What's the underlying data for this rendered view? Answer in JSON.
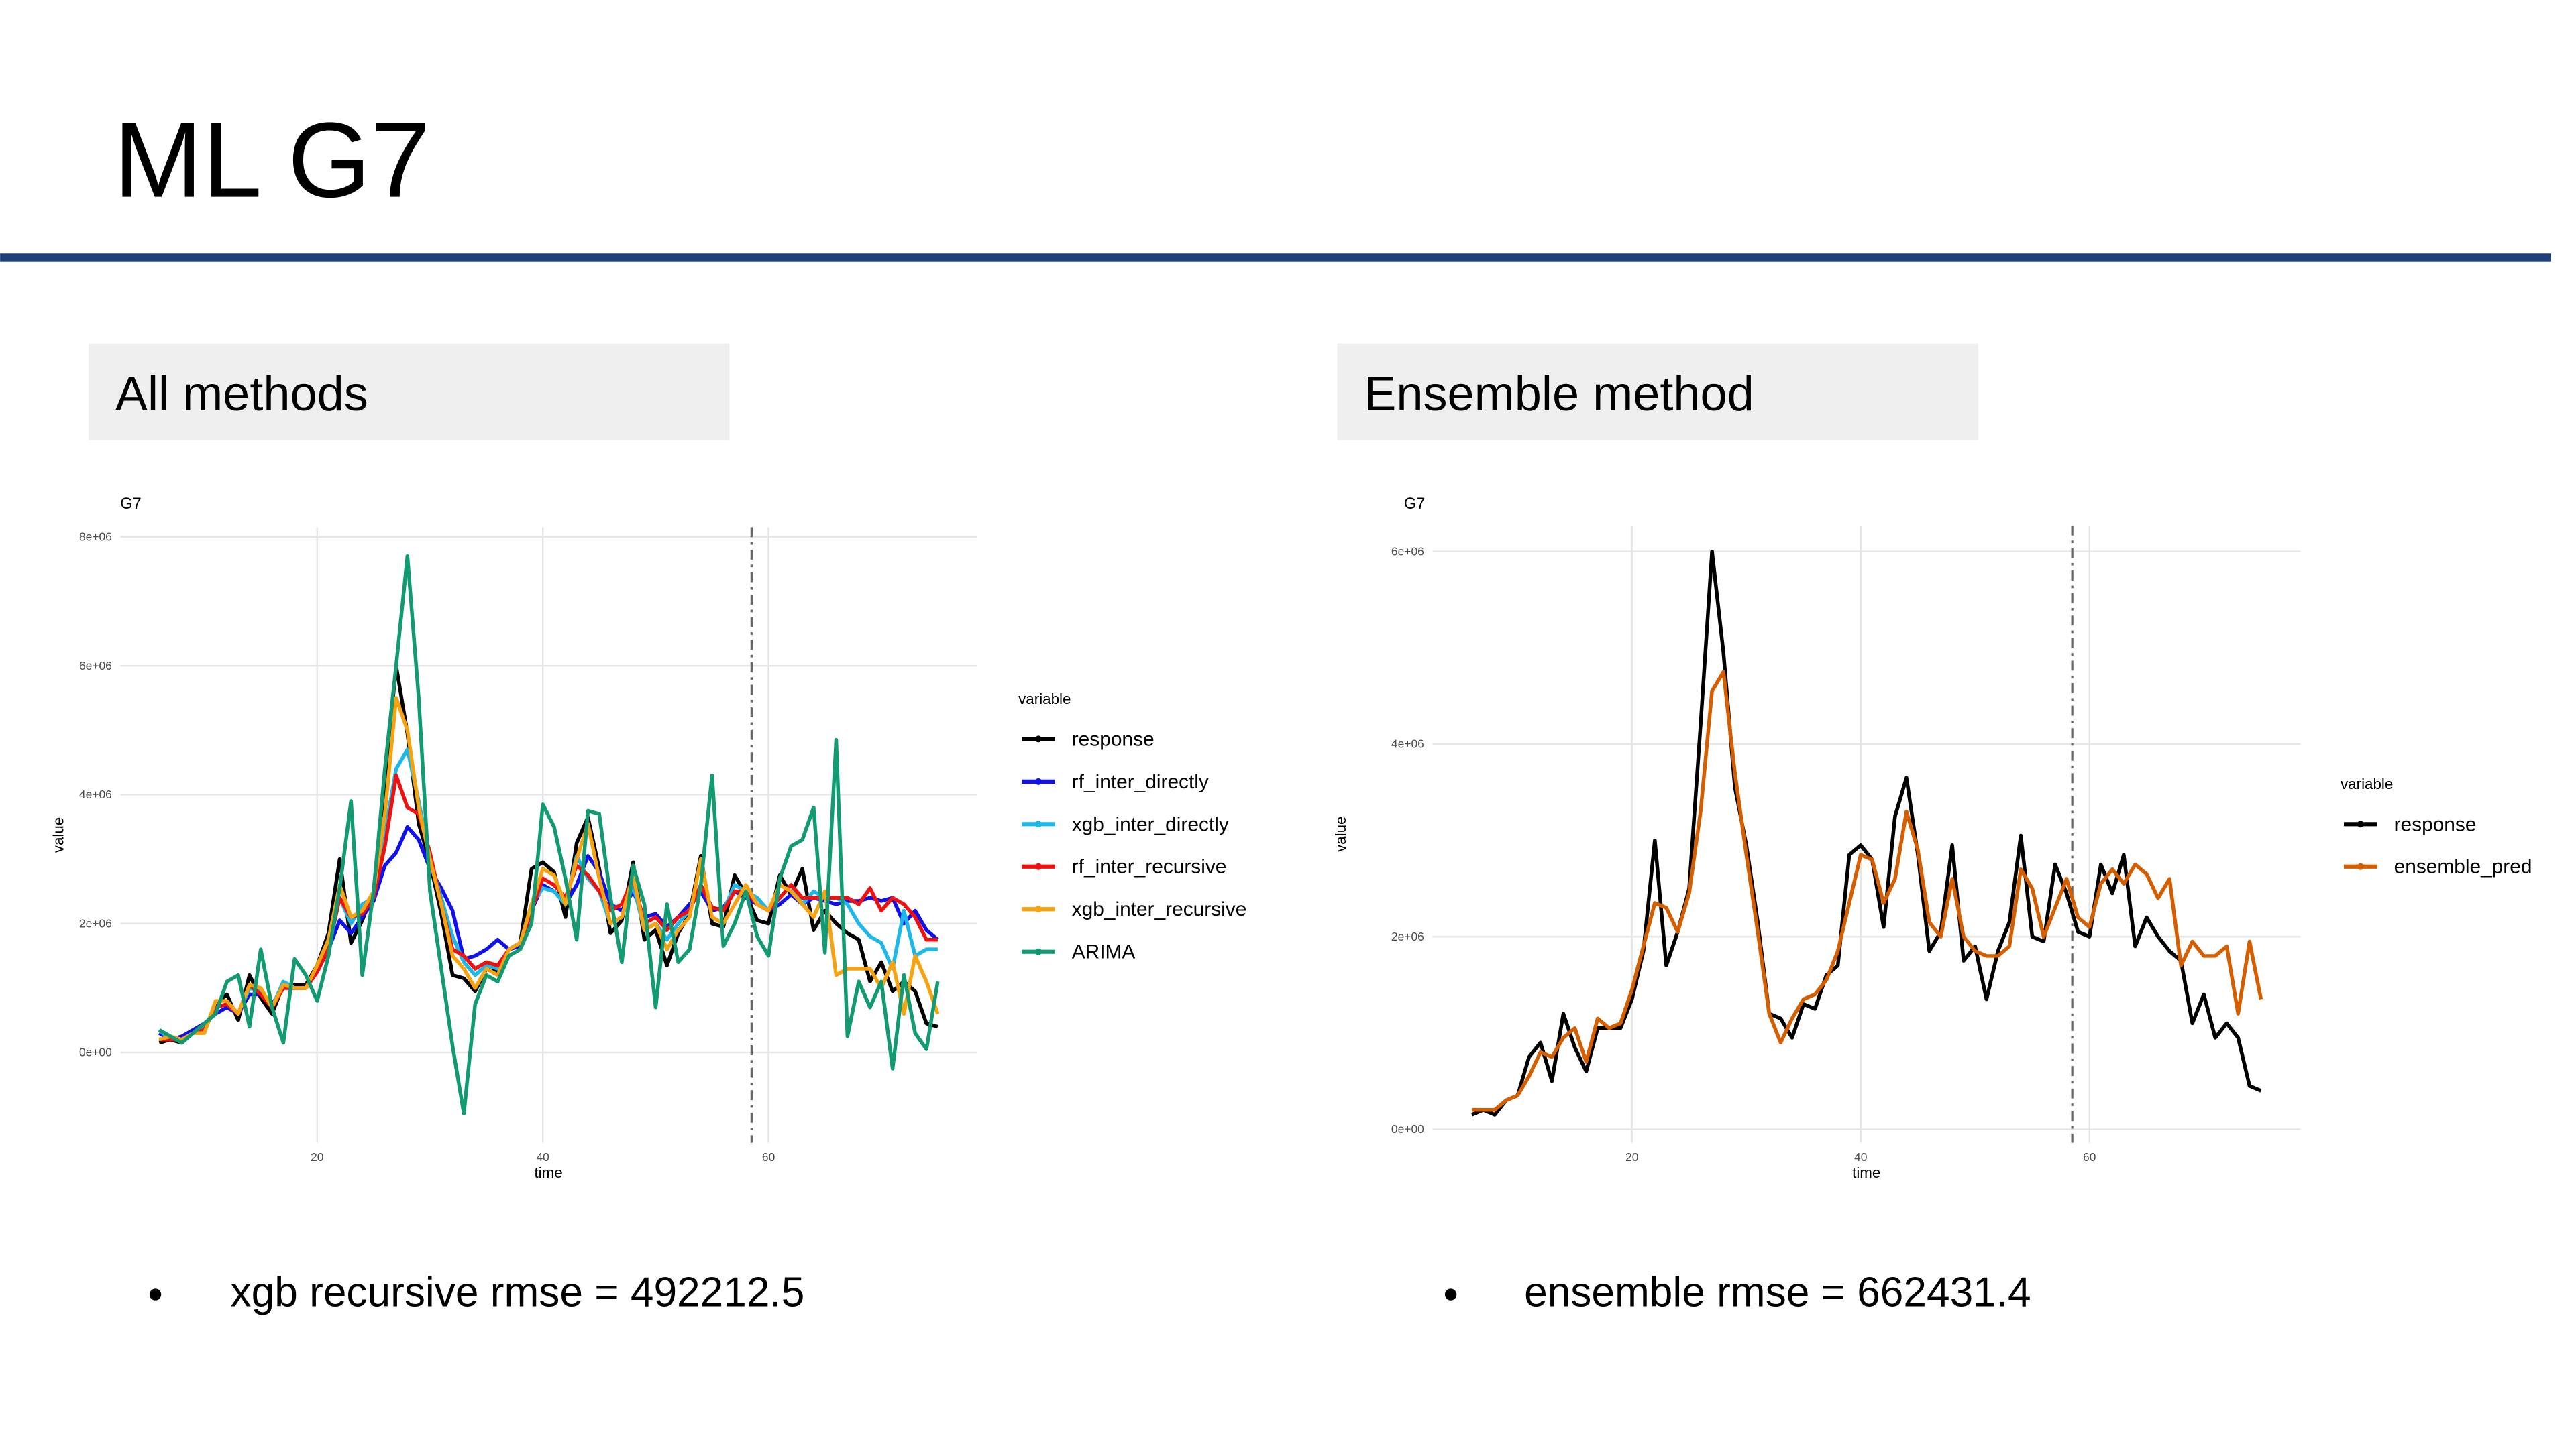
{
  "slide": {
    "title": "ML G7",
    "panels": [
      {
        "heading": "All methods",
        "bullet": "xgb recursive rmse = 492212.5"
      },
      {
        "heading": "Ensemble method",
        "bullet": "ensemble rmse = 662431.4"
      }
    ]
  },
  "chart_data": [
    {
      "type": "line",
      "title": "G7",
      "xlabel": "time",
      "ylabel": "value",
      "legend_title": "variable",
      "grid": true,
      "x": [
        6,
        7,
        8,
        9,
        10,
        11,
        12,
        13,
        14,
        15,
        16,
        17,
        18,
        19,
        20,
        21,
        22,
        23,
        24,
        25,
        26,
        27,
        28,
        29,
        30,
        31,
        32,
        33,
        34,
        35,
        36,
        37,
        38,
        39,
        40,
        41,
        42,
        43,
        44,
        45,
        46,
        47,
        48,
        49,
        50,
        51,
        52,
        53,
        54,
        55,
        56,
        57,
        58,
        59,
        60,
        61,
        62,
        63,
        64,
        65,
        66,
        67,
        68,
        69,
        70,
        71,
        72,
        73,
        74,
        75
      ],
      "xlim": [
        2.55,
        78.45
      ],
      "xticks": [
        20,
        40,
        60
      ],
      "ylim": [
        -1400000.0,
        8150000.0
      ],
      "yticks": [
        {
          "value": 0,
          "label": "0e+00"
        },
        {
          "value": 2000000.0,
          "label": "2e+06"
        },
        {
          "value": 4000000.0,
          "label": "4e+06"
        },
        {
          "value": 6000000.0,
          "label": "6e+06"
        },
        {
          "value": 8000000.0,
          "label": "8e+06"
        }
      ],
      "vline": 58.5,
      "series": [
        {
          "name": "response",
          "color": "#000000",
          "values": [
            150000.0,
            200000.0,
            150000.0,
            300000.0,
            350000.0,
            750000.0,
            900000.0,
            500000.0,
            1200000.0,
            850000.0,
            600000.0,
            1050000.0,
            1050000.0,
            1050000.0,
            1350000.0,
            1850000.0,
            3000000.0,
            1700000.0,
            2050000.0,
            2500000.0,
            4200000.0,
            6000000.0,
            4950000.0,
            3550000.0,
            2950000.0,
            2150000.0,
            1200000.0,
            1150000.0,
            950000.0,
            1300000.0,
            1250000.0,
            1600000.0,
            1700000.0,
            2850000.0,
            2950000.0,
            2800000.0,
            2100000.0,
            3250000.0,
            3650000.0,
            2850000.0,
            1850000.0,
            2050000.0,
            2950000.0,
            1750000.0,
            1900000.0,
            1350000.0,
            1850000.0,
            2150000.0,
            3050000.0,
            2000000.0,
            1950000.0,
            2750000.0,
            2450000.0,
            2050000.0,
            2000000.0,
            2750000.0,
            2450000.0,
            2850000.0,
            1900000.0,
            2200000.0,
            2000000.0,
            1850000.0,
            1750000.0,
            1100000.0,
            1400000.0,
            950000.0,
            1100000.0,
            950000.0,
            450000.0,
            400000.0
          ]
        },
        {
          "name": "rf_inter_directly",
          "color": "#1010ee",
          "values": [
            300000.0,
            200000.0,
            250000.0,
            350000.0,
            450000.0,
            600000.0,
            700000.0,
            600000.0,
            900000.0,
            900000.0,
            750000.0,
            1000000.0,
            1000000.0,
            1000000.0,
            1250000.0,
            1600000.0,
            2050000.0,
            1850000.0,
            2100000.0,
            2350000.0,
            2900000.0,
            3100000.0,
            3500000.0,
            3300000.0,
            2850000.0,
            2550000.0,
            2200000.0,
            1450000.0,
            1500000.0,
            1600000.0,
            1750000.0,
            1600000.0,
            1650000.0,
            2200000.0,
            2600000.0,
            2500000.0,
            2300000.0,
            2600000.0,
            3050000.0,
            2800000.0,
            2300000.0,
            2200000.0,
            2500000.0,
            2100000.0,
            2150000.0,
            1950000.0,
            2100000.0,
            2300000.0,
            2500000.0,
            2200000.0,
            2250000.0,
            2500000.0,
            2400000.0,
            2300000.0,
            2200000.0,
            2300000.0,
            2450000.0,
            2300000.0,
            2400000.0,
            2350000.0,
            2300000.0,
            2350000.0,
            2350000.0,
            2400000.0,
            2350000.0,
            2400000.0,
            2000000.0,
            2200000.0,
            1900000.0,
            1750000.0
          ]
        },
        {
          "name": "xgb_inter_directly",
          "color": "#1cb8ea",
          "values": [
            350000.0,
            200000.0,
            200000.0,
            300000.0,
            400000.0,
            700000.0,
            750000.0,
            600000.0,
            1000000.0,
            950000.0,
            700000.0,
            1100000.0,
            1000000.0,
            1000000.0,
            1300000.0,
            1700000.0,
            2400000.0,
            2000000.0,
            2300000.0,
            2400000.0,
            3400000.0,
            4400000.0,
            4700000.0,
            3900000.0,
            3000000.0,
            2400000.0,
            1800000.0,
            1400000.0,
            1200000.0,
            1350000.0,
            1300000.0,
            1600000.0,
            1700000.0,
            2300000.0,
            2550000.0,
            2500000.0,
            2300000.0,
            3050000.0,
            2700000.0,
            2500000.0,
            2000000.0,
            2100000.0,
            2600000.0,
            1900000.0,
            2000000.0,
            1750000.0,
            2000000.0,
            2200000.0,
            2600000.0,
            2250000.0,
            2200000.0,
            2600000.0,
            2500000.0,
            2400000.0,
            2200000.0,
            2400000.0,
            2600000.0,
            2300000.0,
            2500000.0,
            2400000.0,
            2400000.0,
            2300000.0,
            2000000.0,
            1800000.0,
            1700000.0,
            1300000.0,
            2200000.0,
            1500000.0,
            1600000.0,
            1600000.0
          ]
        },
        {
          "name": "rf_inter_recursive",
          "color": "#f01010",
          "values": [
            200000.0,
            200000.0,
            200000.0,
            300000.0,
            350000.0,
            700000.0,
            750000.0,
            600000.0,
            1050000.0,
            900000.0,
            700000.0,
            1000000.0,
            1000000.0,
            1000000.0,
            1250000.0,
            1600000.0,
            2400000.0,
            2100000.0,
            2150000.0,
            2400000.0,
            3200000.0,
            4300000.0,
            3800000.0,
            3700000.0,
            3100000.0,
            2300000.0,
            1600000.0,
            1500000.0,
            1300000.0,
            1400000.0,
            1350000.0,
            1600000.0,
            1700000.0,
            2200000.0,
            2700000.0,
            2600000.0,
            2400000.0,
            2900000.0,
            2750000.0,
            2500000.0,
            2200000.0,
            2300000.0,
            2700000.0,
            2000000.0,
            2100000.0,
            1900000.0,
            2100000.0,
            2200000.0,
            2600000.0,
            2250000.0,
            2200000.0,
            2500000.0,
            2500000.0,
            2300000.0,
            2200000.0,
            2400000.0,
            2600000.0,
            2400000.0,
            2400000.0,
            2400000.0,
            2400000.0,
            2400000.0,
            2300000.0,
            2550000.0,
            2200000.0,
            2400000.0,
            2300000.0,
            2100000.0,
            1750000.0,
            1750000.0
          ]
        },
        {
          "name": "xgb_inter_recursive",
          "color": "#f7a20f",
          "values": [
            200000.0,
            250000.0,
            200000.0,
            300000.0,
            300000.0,
            800000.0,
            800000.0,
            600000.0,
            1050000.0,
            1000000.0,
            700000.0,
            1050000.0,
            1000000.0,
            1000000.0,
            1350000.0,
            1750000.0,
            2600000.0,
            2100000.0,
            2200000.0,
            2500000.0,
            3700000.0,
            5500000.0,
            5000000.0,
            3800000.0,
            3000000.0,
            2300000.0,
            1500000.0,
            1300000.0,
            1000000.0,
            1300000.0,
            1200000.0,
            1600000.0,
            1700000.0,
            2300000.0,
            2850000.0,
            2750000.0,
            2300000.0,
            3000000.0,
            3550000.0,
            2700000.0,
            2000000.0,
            2100000.0,
            2750000.0,
            1900000.0,
            2000000.0,
            1600000.0,
            1900000.0,
            2100000.0,
            3000000.0,
            2100000.0,
            2000000.0,
            2300000.0,
            2600000.0,
            2300000.0,
            2200000.0,
            2600000.0,
            2500000.0,
            2300000.0,
            2100000.0,
            2500000.0,
            1200000.0,
            1300000.0,
            1300000.0,
            1300000.0,
            1000000.0,
            1400000.0,
            600000.0,
            1500000.0,
            1100000.0,
            600000.0
          ]
        },
        {
          "name": "ARIMA",
          "color": "#129b72",
          "values": [
            350000.0,
            250000.0,
            150000.0,
            300000.0,
            450000.0,
            600000.0,
            1100000.0,
            1200000.0,
            400000.0,
            1600000.0,
            700000.0,
            150000.0,
            1450000.0,
            1200000.0,
            800000.0,
            1500000.0,
            2550000.0,
            3900000.0,
            1200000.0,
            2500000.0,
            4400000.0,
            6000000.0,
            7700000.0,
            5500000.0,
            2500000.0,
            1300000.0,
            100000.0,
            -950000.0,
            750000.0,
            1200000.0,
            1100000.0,
            1500000.0,
            1600000.0,
            2000000.0,
            3850000.0,
            3500000.0,
            2700000.0,
            1750000.0,
            3750000.0,
            3700000.0,
            2400000.0,
            1400000.0,
            2900000.0,
            2300000.0,
            700000.0,
            2300000.0,
            1400000.0,
            1600000.0,
            2600000.0,
            4300000.0,
            1650000.0,
            2000000.0,
            2500000.0,
            1800000.0,
            1500000.0,
            2700000.0,
            3200000.0,
            3300000.0,
            3800000.0,
            1550000.0,
            4850000.0,
            250000.0,
            1100000.0,
            700000.0,
            1100000.0,
            -250000.0,
            1200000.0,
            300000.0,
            50000.0,
            1100000.0
          ]
        }
      ]
    },
    {
      "type": "line",
      "title": "G7",
      "xlabel": "time",
      "ylabel": "value",
      "legend_title": "variable",
      "grid": true,
      "x": [
        6,
        7,
        8,
        9,
        10,
        11,
        12,
        13,
        14,
        15,
        16,
        17,
        18,
        19,
        20,
        21,
        22,
        23,
        24,
        25,
        26,
        27,
        28,
        29,
        30,
        31,
        32,
        33,
        34,
        35,
        36,
        37,
        38,
        39,
        40,
        41,
        42,
        43,
        44,
        45,
        46,
        47,
        48,
        49,
        50,
        51,
        52,
        53,
        54,
        55,
        56,
        57,
        58,
        59,
        60,
        61,
        62,
        63,
        64,
        65,
        66,
        67,
        68,
        69,
        70,
        71,
        72,
        73,
        74,
        75
      ],
      "xlim": [
        2.55,
        78.45
      ],
      "xticks": [
        20,
        40,
        60
      ],
      "ylim": [
        -140000.0,
        6270000.0
      ],
      "yticks": [
        {
          "value": 0,
          "label": "0e+00"
        },
        {
          "value": 2000000.0,
          "label": "2e+06"
        },
        {
          "value": 4000000.0,
          "label": "4e+06"
        },
        {
          "value": 6000000.0,
          "label": "6e+06"
        }
      ],
      "vline": 58.5,
      "series": [
        {
          "name": "response",
          "color": "#000000",
          "values": [
            150000.0,
            200000.0,
            150000.0,
            300000.0,
            350000.0,
            750000.0,
            900000.0,
            500000.0,
            1200000.0,
            850000.0,
            600000.0,
            1050000.0,
            1050000.0,
            1050000.0,
            1350000.0,
            1850000.0,
            3000000.0,
            1700000.0,
            2050000.0,
            2500000.0,
            4200000.0,
            6000000.0,
            4950000.0,
            3550000.0,
            2950000.0,
            2150000.0,
            1200000.0,
            1150000.0,
            950000.0,
            1300000.0,
            1250000.0,
            1600000.0,
            1700000.0,
            2850000.0,
            2950000.0,
            2800000.0,
            2100000.0,
            3250000.0,
            3650000.0,
            2850000.0,
            1850000.0,
            2050000.0,
            2950000.0,
            1750000.0,
            1900000.0,
            1350000.0,
            1850000.0,
            2150000.0,
            3050000.0,
            2000000.0,
            1950000.0,
            2750000.0,
            2450000.0,
            2050000.0,
            2000000.0,
            2750000.0,
            2450000.0,
            2850000.0,
            1900000.0,
            2200000.0,
            2000000.0,
            1850000.0,
            1750000.0,
            1100000.0,
            1400000.0,
            950000.0,
            1100000.0,
            950000.0,
            450000.0,
            400000.0
          ]
        },
        {
          "name": "ensemble_pred",
          "color": "#d55e00",
          "values": [
            200000.0,
            200000.0,
            200000.0,
            300000.0,
            350000.0,
            550000.0,
            800000.0,
            750000.0,
            950000.0,
            1050000.0,
            700000.0,
            1150000.0,
            1050000.0,
            1100000.0,
            1450000.0,
            1900000.0,
            2350000.0,
            2300000.0,
            2050000.0,
            2450000.0,
            3300000.0,
            4550000.0,
            4750000.0,
            3700000.0,
            2850000.0,
            2050000.0,
            1200000.0,
            900000.0,
            1150000.0,
            1350000.0,
            1400000.0,
            1550000.0,
            1850000.0,
            2350000.0,
            2850000.0,
            2800000.0,
            2350000.0,
            2600000.0,
            3300000.0,
            2900000.0,
            2150000.0,
            2000000.0,
            2600000.0,
            2000000.0,
            1850000.0,
            1800000.0,
            1800000.0,
            1900000.0,
            2700000.0,
            2500000.0,
            2000000.0,
            2300000.0,
            2600000.0,
            2200000.0,
            2100000.0,
            2550000.0,
            2700000.0,
            2550000.0,
            2750000.0,
            2650000.0,
            2400000.0,
            2600000.0,
            1700000.0,
            1950000.0,
            1800000.0,
            1800000.0,
            1900000.0,
            1200000.0,
            1950000.0,
            1350000.0
          ]
        }
      ]
    }
  ]
}
